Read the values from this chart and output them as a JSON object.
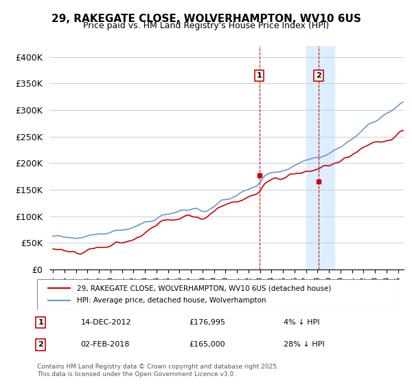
{
  "title1": "29, RAKEGATE CLOSE, WOLVERHAMPTON, WV10 6US",
  "title2": "Price paid vs. HM Land Registry's House Price Index (HPI)",
  "ylabel_ticks": [
    "£0",
    "£50K",
    "£100K",
    "£150K",
    "£200K",
    "£250K",
    "£300K",
    "£350K",
    "£400K"
  ],
  "ylabel_values": [
    0,
    50000,
    100000,
    150000,
    200000,
    250000,
    300000,
    350000,
    400000
  ],
  "ylim": [
    0,
    420000
  ],
  "xlim_start": 1995.0,
  "xlim_end": 2025.5,
  "sale1_date": "14-DEC-2012",
  "sale1_price": 176995,
  "sale1_pct": "4% ↓ HPI",
  "sale1_year": 2012.95,
  "sale2_date": "02-FEB-2018",
  "sale2_price": 165000,
  "sale2_pct": "28% ↓ HPI",
  "sale2_year": 2018.09,
  "legend1": "29, RAKEGATE CLOSE, WOLVERHAMPTON, WV10 6US (detached house)",
  "legend2": "HPI: Average price, detached house, Wolverhampton",
  "footnote": "Contains HM Land Registry data © Crown copyright and database right 2025.\nThis data is licensed under the Open Government Licence v3.0.",
  "red_color": "#cc0000",
  "blue_color": "#6699cc",
  "shade_color": "#ddeeff",
  "bg_color": "#ffffff",
  "grid_color": "#cccccc",
  "shade_start": 2017.0,
  "shade_end": 2019.5
}
